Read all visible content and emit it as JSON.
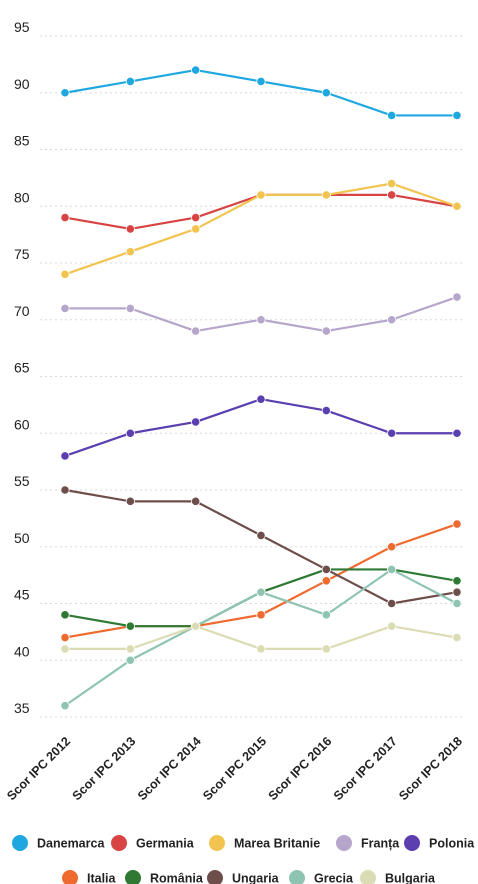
{
  "chart_data": {
    "type": "line",
    "categories": [
      "Scor IPC 2012",
      "Scor IPC 2013",
      "Scor IPC 2014",
      "Scor IPC 2015",
      "Scor IPC 2016",
      "Scor IPC 2017",
      "Scor IPC 2018"
    ],
    "ylim": [
      35,
      95
    ],
    "yticks": [
      35,
      40,
      45,
      50,
      55,
      60,
      65,
      70,
      75,
      80,
      85,
      90,
      95
    ],
    "grid": true,
    "legend_position": "bottom",
    "series": [
      {
        "name": "Danemarca",
        "color": "#1fa7df",
        "values": [
          90,
          91,
          92,
          91,
          90,
          88,
          88
        ]
      },
      {
        "name": "Germania",
        "color": "#d84343",
        "values": [
          79,
          78,
          79,
          81,
          81,
          81,
          80
        ]
      },
      {
        "name": "Marea Britanie",
        "color": "#f2c44f",
        "values": [
          74,
          76,
          78,
          81,
          81,
          82,
          80
        ]
      },
      {
        "name": "Franța",
        "color": "#b7a6cc",
        "values": [
          71,
          71,
          69,
          70,
          69,
          70,
          72
        ]
      },
      {
        "name": "Polonia",
        "color": "#5b3fb0",
        "values": [
          58,
          60,
          61,
          63,
          62,
          60,
          60
        ]
      },
      {
        "name": "Italia",
        "color": "#ee6a2e",
        "values": [
          42,
          43,
          43,
          44,
          47,
          50,
          52
        ]
      },
      {
        "name": "România",
        "color": "#2e7a34",
        "values": [
          44,
          43,
          43,
          46,
          48,
          48,
          47
        ]
      },
      {
        "name": "Ungaria",
        "color": "#6e4e4b",
        "values": [
          55,
          54,
          54,
          51,
          48,
          45,
          46
        ]
      },
      {
        "name": "Grecia",
        "color": "#8fc4b3",
        "values": [
          36,
          40,
          43,
          46,
          44,
          48,
          45
        ]
      },
      {
        "name": "Bulgaria",
        "color": "#dcdcb4",
        "values": [
          41,
          41,
          43,
          41,
          41,
          43,
          42
        ]
      }
    ]
  }
}
